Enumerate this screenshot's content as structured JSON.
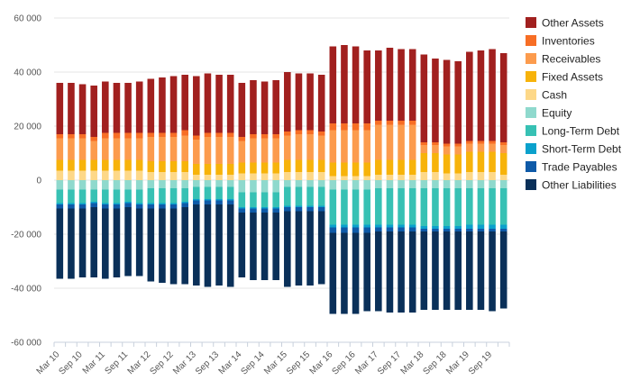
{
  "chart_data": {
    "type": "bar",
    "stacked": true,
    "title": "",
    "xlabel": "",
    "ylabel": "",
    "ylim": [
      -60000,
      60000
    ],
    "y_ticks": [
      60000,
      40000,
      20000,
      0,
      -20000,
      -40000,
      -60000
    ],
    "y_tick_labels": [
      "60 000",
      "40 000",
      "20 000",
      "0",
      "-20 000",
      "-40 000",
      "-60 000"
    ],
    "x_tick_labels": [
      "Mar 10",
      "Sep 10",
      "Mar 11",
      "Sep 11",
      "Mar 12",
      "Sep 12",
      "Mar 13",
      "Sep 13",
      "Mar 14",
      "Sep 14",
      "Mar 15",
      "Sep 15",
      "Mar 16",
      "Sep 16",
      "Mar 17",
      "Sep 17",
      "Mar 18",
      "Sep 18",
      "Mar 19",
      "Sep 19"
    ],
    "grid": "horizontal",
    "legend_position": "right",
    "categories": [
      "Mar 10",
      "Jun 10",
      "Sep 10",
      "Dec 10",
      "Mar 11",
      "Jun 11",
      "Sep 11",
      "Dec 11",
      "Mar 12",
      "Jun 12",
      "Sep 12",
      "Dec 12",
      "Mar 13",
      "Jun 13",
      "Sep 13",
      "Dec 13",
      "Mar 14",
      "Jun 14",
      "Sep 14",
      "Dec 14",
      "Mar 15",
      "Jun 15",
      "Sep 15",
      "Dec 15",
      "Mar 16",
      "Jun 16",
      "Sep 16",
      "Dec 16",
      "Mar 17",
      "Jun 17",
      "Sep 17",
      "Dec 17",
      "Mar 18",
      "Jun 18",
      "Sep 18",
      "Dec 18",
      "Mar 19",
      "Jun 19",
      "Sep 19",
      "Dec 19"
    ],
    "series": [
      {
        "name": "Cash",
        "group": "assets",
        "color": "#fdd888",
        "values": [
          3500,
          3500,
          3500,
          3500,
          3500,
          3500,
          3500,
          3500,
          3000,
          3000,
          3000,
          3000,
          2000,
          2000,
          2000,
          2000,
          2500,
          2500,
          2500,
          2500,
          3000,
          3000,
          3000,
          3000,
          1500,
          1500,
          1500,
          1500,
          2000,
          2000,
          2000,
          2000,
          3000,
          3000,
          2500,
          2500,
          3000,
          3000,
          3000,
          2000
        ]
      },
      {
        "name": "Fixed Assets",
        "group": "assets",
        "color": "#f7b30a",
        "values": [
          4000,
          4000,
          4000,
          4000,
          4000,
          4000,
          4000,
          4000,
          4000,
          4000,
          4000,
          4000,
          4000,
          4000,
          4000,
          4000,
          4000,
          4000,
          4000,
          4000,
          4500,
          4500,
          4500,
          4500,
          5000,
          5000,
          5000,
          5000,
          5500,
          5500,
          5500,
          5500,
          7000,
          7000,
          7000,
          7000,
          7500,
          7500,
          7500,
          8000
        ]
      },
      {
        "name": "Receivables",
        "group": "assets",
        "color": "#fc9b4d",
        "values": [
          8000,
          8000,
          8000,
          7000,
          8000,
          8000,
          8000,
          8000,
          9000,
          9000,
          9000,
          9500,
          9000,
          10000,
          10000,
          10000,
          8000,
          9000,
          9000,
          9000,
          9000,
          9500,
          9500,
          9000,
          12000,
          12000,
          12000,
          12000,
          13000,
          13000,
          13000,
          13000,
          3000,
          3000,
          3000,
          3000,
          3000,
          3000,
          3000,
          3000
        ]
      },
      {
        "name": "Inventories",
        "group": "assets",
        "color": "#f76e25",
        "values": [
          1500,
          1500,
          1500,
          1500,
          2000,
          2000,
          2000,
          2000,
          1500,
          1500,
          1500,
          2000,
          1500,
          1500,
          1500,
          1500,
          1500,
          1500,
          1500,
          1500,
          1500,
          1500,
          1500,
          1500,
          2500,
          2500,
          2500,
          2500,
          1500,
          1500,
          1500,
          1500,
          1000,
          1000,
          1000,
          1000,
          1000,
          1000,
          1000,
          1000
        ]
      },
      {
        "name": "Other Assets",
        "group": "assets",
        "color": "#a1201f",
        "values": [
          19000,
          19000,
          18500,
          19000,
          19000,
          18500,
          18500,
          19000,
          20000,
          20500,
          21000,
          20500,
          22000,
          22000,
          21500,
          21500,
          20000,
          20000,
          19500,
          20000,
          22000,
          21000,
          21000,
          21000,
          28500,
          29000,
          28500,
          27000,
          26000,
          27000,
          26500,
          26500,
          32500,
          31000,
          31000,
          30500,
          33000,
          33500,
          34000,
          33000
        ]
      },
      {
        "name": "Equity",
        "group": "liabilities",
        "color": "#8fd9cd",
        "values": [
          3500,
          3500,
          3500,
          3500,
          3500,
          3500,
          3500,
          3500,
          3000,
          3000,
          3000,
          3000,
          2500,
          2500,
          2500,
          2500,
          4500,
          4500,
          4500,
          4500,
          2500,
          2500,
          2500,
          2500,
          3500,
          3500,
          3500,
          3500,
          3000,
          3000,
          3000,
          3000,
          3000,
          3000,
          3000,
          3000,
          3000,
          3000,
          3000,
          3000
        ]
      },
      {
        "name": "Long-Term Debt",
        "group": "liabilities",
        "color": "#37c1b4",
        "values": [
          5000,
          5000,
          5000,
          4500,
          5000,
          5000,
          4500,
          5000,
          5500,
          5500,
          5500,
          5000,
          4500,
          4500,
          4500,
          4500,
          5500,
          5500,
          5500,
          5500,
          7000,
          7000,
          7000,
          7000,
          13000,
          13000,
          13000,
          13000,
          13500,
          13500,
          13500,
          13500,
          14000,
          14000,
          14000,
          14000,
          13500,
          13500,
          13500,
          13500
        ]
      },
      {
        "name": "Short-Term Debt",
        "group": "liabilities",
        "color": "#0ba1cc",
        "values": [
          500,
          500,
          500,
          500,
          500,
          500,
          500,
          500,
          500,
          500,
          500,
          500,
          500,
          500,
          500,
          500,
          500,
          500,
          500,
          500,
          500,
          500,
          500,
          500,
          1000,
          1000,
          1000,
          1000,
          1000,
          1000,
          1000,
          1000,
          1000,
          1000,
          1000,
          1000,
          1500,
          1500,
          1500,
          1500
        ]
      },
      {
        "name": "Trade Payables",
        "group": "liabilities",
        "color": "#0e5aa8",
        "values": [
          1500,
          1500,
          1500,
          1500,
          1500,
          1500,
          1500,
          1500,
          1500,
          1500,
          1500,
          1500,
          1500,
          1500,
          1500,
          1500,
          1500,
          1500,
          1500,
          1500,
          1500,
          1500,
          1500,
          1500,
          2000,
          2000,
          2000,
          2000,
          1500,
          1500,
          1500,
          1500,
          1000,
          1000,
          1000,
          1000,
          1000,
          1000,
          1000,
          1000
        ]
      },
      {
        "name": "Other Liabilities",
        "group": "liabilities",
        "color": "#0a3059",
        "values": [
          26000,
          26000,
          25500,
          26000,
          26000,
          25500,
          25500,
          25000,
          27000,
          27500,
          28000,
          28500,
          30000,
          30500,
          30000,
          30500,
          24000,
          25000,
          25000,
          25000,
          28000,
          27500,
          27500,
          27000,
          30000,
          30000,
          30000,
          29000,
          29500,
          30000,
          30000,
          30000,
          29000,
          29000,
          29000,
          29000,
          29000,
          29000,
          29500,
          28500
        ]
      }
    ],
    "legend_order": [
      "Other Assets",
      "Inventories",
      "Receivables",
      "Fixed Assets",
      "Cash",
      "Equity",
      "Long-Term Debt",
      "Short-Term Debt",
      "Trade Payables",
      "Other Liabilities"
    ]
  }
}
